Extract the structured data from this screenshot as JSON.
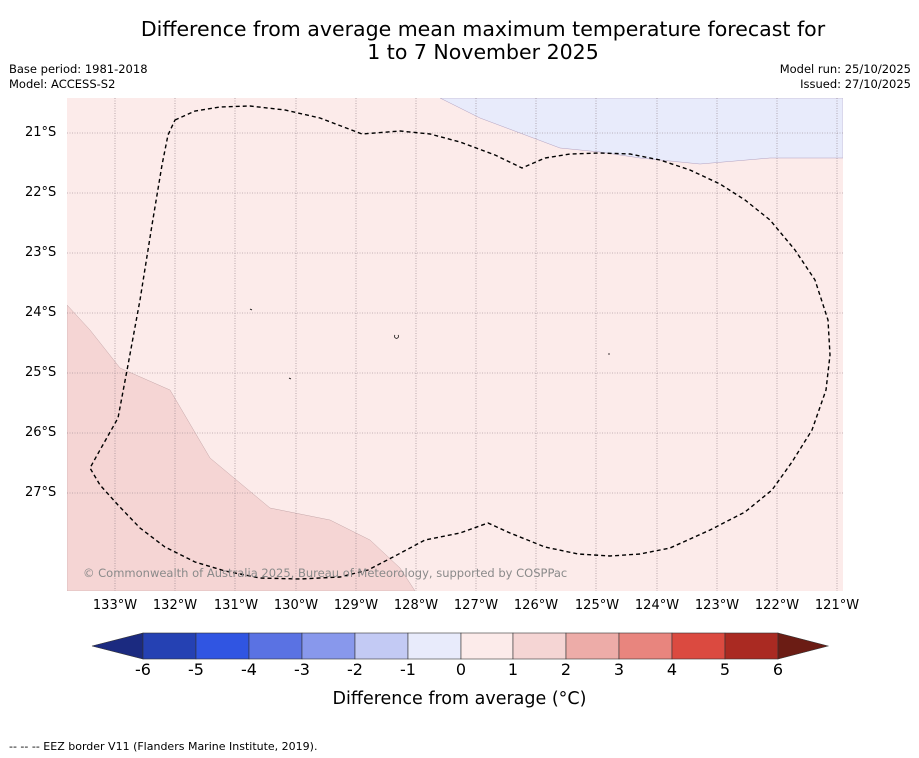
{
  "title_line1": "Difference from average mean maximum temperature forecast for",
  "title_line2": "1 to 7 November 2025",
  "base_period": "Base period: 1981-2018",
  "model": "Model: ACCESS-S2",
  "model_run": "Model run: 25/10/2025",
  "issued": "Issued: 27/10/2025",
  "copyright": "© Commonwealth of Australia 2025, Bureau of Meteorology, supported by COSPPac",
  "colorbar": {
    "title": "Difference from average (°C)",
    "labels": [
      "-6",
      "-5",
      "-4",
      "-3",
      "-2",
      "-1",
      "0",
      "1",
      "2",
      "3",
      "4",
      "5",
      "6"
    ],
    "colors": {
      "below_-6": "#1b2a80",
      "-6_-5": "#2541b3",
      "-5_-4": "#3055e2",
      "-4_-3": "#5a72e3",
      "-3_-2": "#8898ec",
      "-2_-1": "#c3caf4",
      "-1_0": "#e8ebfb",
      "0_1": "#fcebea",
      "1_2": "#f5d5d4",
      "2_3": "#edaca8",
      "3_4": "#e8857e",
      "4_5": "#db4a40",
      "5_6": "#aa2a22",
      "above_6": "#6b1c14"
    }
  },
  "map": {
    "latitude_labels": [
      "21°S",
      "22°S",
      "23°S",
      "24°S",
      "25°S",
      "26°S",
      "27°S"
    ],
    "longitude_labels": [
      "133°W",
      "132°W",
      "131°W",
      "130°W",
      "129°W",
      "128°W",
      "127°W",
      "126°W",
      "125°W",
      "124°W",
      "123°W",
      "122°W",
      "121°W"
    ],
    "regions": [
      {
        "name": "0 to 1 °C",
        "color": "#fcebea"
      },
      {
        "name": "-1 to 0 °C",
        "color": "#e8ebfb"
      },
      {
        "name": "1 to 2 °C",
        "color": "#f5d5d4"
      }
    ]
  },
  "footer": "-- -- -- EEZ border V11 (Flanders Marine Institute, 2019)."
}
